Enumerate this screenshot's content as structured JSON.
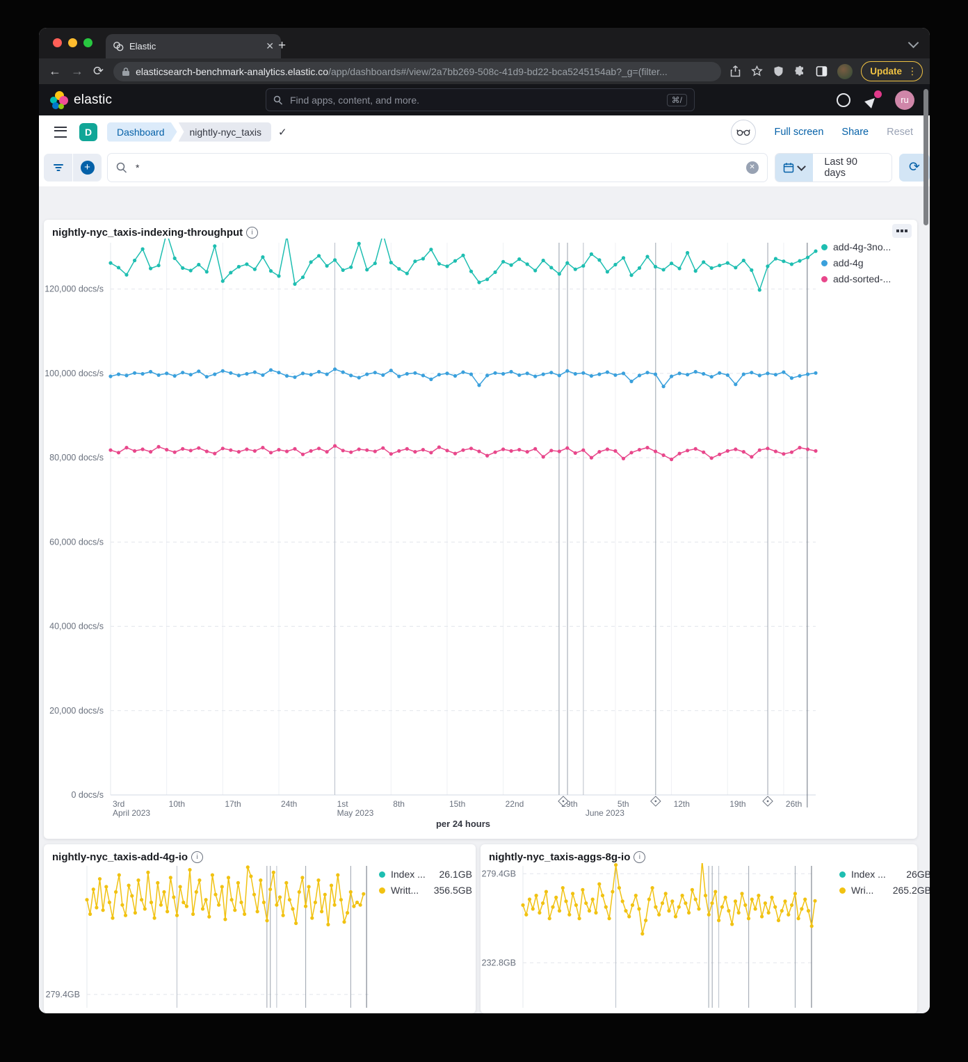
{
  "colors": {
    "teal": "#1ebeb1",
    "blue": "#3aa0dc",
    "pink": "#e8478b",
    "yellow": "#f1c212",
    "link_blue": "#0561a8",
    "badge_teal": "#11a697"
  },
  "browser": {
    "tab_title": "Elastic",
    "url_domain": "elasticsearch-benchmark-analytics.elastic.co",
    "url_path": "/app/dashboards#/view/2a7bb269-508c-41d9-bd22-bca5245154ab?_g=(filter...",
    "update_label": "Update"
  },
  "app_header": {
    "brand": "elastic",
    "search_placeholder": "Find apps, content, and more.",
    "search_shortcut": "⌘/",
    "avatar_initials": "ru"
  },
  "toolbar": {
    "breadcrumb_app": "Dashboard",
    "breadcrumb_page": "nightly-nyc_taxis",
    "full_screen_label": "Full screen",
    "share_label": "Share",
    "reset_label": "Reset"
  },
  "querybar": {
    "query_value": "*",
    "time_range": "Last 90 days"
  },
  "panels": {
    "main_title": "nightly-nyc_taxis-indexing-throughput",
    "left_title": "nightly-nyc_taxis-add-4g-io",
    "right_title": "nightly-nyc_taxis-aggs-8g-io"
  },
  "chart_data": [
    {
      "id": "main",
      "type": "line",
      "title": "nightly-nyc_taxis-indexing-throughput",
      "caption": "per 24 hours",
      "unit": "docs/s",
      "value_unit_thousands": true,
      "ylim": [
        0,
        131
      ],
      "total_days": 88,
      "yticks": [
        {
          "v": 0,
          "label": "0 docs/s"
        },
        {
          "v": 20,
          "label": "20,000 docs/s"
        },
        {
          "v": 40,
          "label": "40,000 docs/s"
        },
        {
          "v": 60,
          "label": "60,000 docs/s"
        },
        {
          "v": 80,
          "label": "80,000 docs/s"
        },
        {
          "v": 100,
          "label": "100,000 docs/s"
        },
        {
          "v": 120,
          "label": "120,000 docs/s"
        }
      ],
      "xticks": [
        {
          "i": 0,
          "l1": "3rd",
          "l2": "April 2023"
        },
        {
          "i": 7,
          "l1": "10th"
        },
        {
          "i": 14,
          "l1": "17th"
        },
        {
          "i": 21,
          "l1": "24th"
        },
        {
          "i": 28,
          "l1": "1st",
          "l2": "May 2023"
        },
        {
          "i": 35,
          "l1": "8th"
        },
        {
          "i": 42,
          "l1": "15th"
        },
        {
          "i": 49,
          "l1": "22nd"
        },
        {
          "i": 56,
          "l1": "29th"
        },
        {
          "i": 59,
          "l1": "",
          "l2": "June 2023"
        },
        {
          "i": 63,
          "l1": "5th"
        },
        {
          "i": 70,
          "l1": "12th"
        },
        {
          "i": 77,
          "l1": "19th"
        },
        {
          "i": 84,
          "l1": "26th"
        }
      ],
      "month_fracs": [
        0.318,
        0.6705
      ],
      "annotation_fracs": [
        0.636,
        0.648,
        0.773,
        0.932
      ],
      "tag_fracs": [
        0.642,
        0.773,
        0.932
      ],
      "end_frac": 0.988,
      "legend": [
        {
          "name": "add-4g-3no...",
          "color": "#1ebeb1"
        },
        {
          "name": "add-4g",
          "color": "#3aa0dc"
        },
        {
          "name": "add-sorted-...",
          "color": "#e8478b"
        }
      ],
      "series": [
        {
          "name": "add-4g-3no...",
          "color": "#1ebeb1",
          "values": [
            126.2,
            125.1,
            123.4,
            126.8,
            129.5,
            124.9,
            125.6,
            133.4,
            127.3,
            125.0,
            124.4,
            125.8,
            124.1,
            130.2,
            121.9,
            123.9,
            125.3,
            125.9,
            124.7,
            127.6,
            124.3,
            123.1,
            132.6,
            121.2,
            122.8,
            126.4,
            127.9,
            125.5,
            126.9,
            124.5,
            125.2,
            130.8,
            124.6,
            126.1,
            133.1,
            126.3,
            124.8,
            123.7,
            126.6,
            127.2,
            129.4,
            126.0,
            125.4,
            126.7,
            128.0,
            124.2,
            121.6,
            122.3,
            124.0,
            126.5,
            125.7,
            127.1,
            125.9,
            124.4,
            126.8,
            125.1,
            123.6,
            126.2,
            124.7,
            125.5,
            128.3,
            126.9,
            124.1,
            125.8,
            127.4,
            123.3,
            125.0,
            127.7,
            125.3,
            124.6,
            126.1,
            124.9,
            128.6,
            124.3,
            126.4,
            125.0,
            125.6,
            126.2,
            125.1,
            126.8,
            124.5,
            119.8,
            125.4,
            127.2,
            126.6,
            125.9,
            126.7,
            127.5,
            129.0
          ]
        },
        {
          "name": "add-4g",
          "color": "#3aa0dc",
          "values": [
            99.3,
            99.8,
            99.5,
            100.1,
            99.9,
            100.4,
            99.6,
            100.0,
            99.4,
            100.2,
            99.7,
            100.5,
            99.2,
            99.8,
            100.6,
            100.1,
            99.5,
            99.9,
            100.3,
            99.6,
            100.8,
            100.2,
            99.4,
            99.1,
            100.0,
            99.7,
            100.4,
            99.8,
            101.0,
            100.3,
            99.5,
            99.0,
            99.8,
            100.2,
            99.6,
            100.7,
            99.3,
            99.9,
            100.1,
            99.5,
            98.6,
            99.7,
            100.0,
            99.4,
            100.3,
            99.8,
            97.2,
            99.5,
            100.1,
            99.9,
            100.4,
            99.6,
            100.0,
            99.3,
            99.8,
            100.2,
            99.5,
            100.6,
            99.9,
            100.1,
            99.4,
            99.8,
            100.3,
            99.6,
            100.0,
            98.1,
            99.5,
            100.2,
            99.8,
            96.9,
            99.3,
            100.0,
            99.7,
            100.4,
            99.9,
            99.2,
            100.1,
            99.6,
            97.4,
            99.8,
            100.2,
            99.5,
            100.0,
            99.7,
            100.3,
            98.9,
            99.4,
            99.8,
            100.1
          ]
        },
        {
          "name": "add-sorted-...",
          "color": "#e8478b",
          "values": [
            81.8,
            81.2,
            82.4,
            81.6,
            82.0,
            81.4,
            82.6,
            81.9,
            81.3,
            82.1,
            81.7,
            82.3,
            81.5,
            81.0,
            82.2,
            81.8,
            81.4,
            82.0,
            81.6,
            82.4,
            81.2,
            81.9,
            81.5,
            82.1,
            80.8,
            81.6,
            82.2,
            81.4,
            82.8,
            81.7,
            81.3,
            82.0,
            81.8,
            81.5,
            82.3,
            80.9,
            81.6,
            82.1,
            81.4,
            81.9,
            81.2,
            82.5,
            81.7,
            81.0,
            81.8,
            82.2,
            81.5,
            80.5,
            81.3,
            82.0,
            81.6,
            81.9,
            81.4,
            82.1,
            80.2,
            81.7,
            81.5,
            82.3,
            81.1,
            81.8,
            80.0,
            81.4,
            82.0,
            81.6,
            79.8,
            81.2,
            81.9,
            82.4,
            81.5,
            80.6,
            79.6,
            81.0,
            81.7,
            82.1,
            81.3,
            79.9,
            80.8,
            81.6,
            82.0,
            81.4,
            80.2,
            81.8,
            82.2,
            81.5,
            80.9,
            81.3,
            82.4,
            82.0,
            81.6
          ]
        }
      ]
    },
    {
      "id": "io_left",
      "type": "line",
      "title": "nightly-nyc_taxis-add-4g-io",
      "unit": "GB",
      "ylim": [
        245.7,
        378
      ],
      "total_days": 88,
      "yticks": [
        {
          "v": 279.4,
          "label": "279.4GB"
        }
      ],
      "xticks": [],
      "month_fracs": [
        0.318,
        0.6705
      ],
      "annotation_fracs": [
        0.636,
        0.648,
        0.773,
        0.932
      ],
      "end_frac": 0.988,
      "legend": [
        {
          "name": "Index ...",
          "value": "26.1GB",
          "color": "#1ebeb1"
        },
        {
          "name": "Writt...",
          "value": "356.5GB",
          "color": "#f1c212"
        }
      ],
      "series": [
        {
          "name": "Written",
          "color": "#f1c212",
          "values": [
            352,
            341,
            360,
            346,
            368,
            344,
            362,
            350,
            338,
            358,
            371,
            348,
            340,
            363,
            355,
            342,
            367,
            352,
            345,
            373,
            350,
            338,
            365,
            348,
            358,
            343,
            369,
            354,
            340,
            362,
            350,
            347,
            375,
            341,
            358,
            367,
            345,
            352,
            339,
            371,
            356,
            348,
            362,
            337,
            369,
            352,
            344,
            365,
            350,
            341,
            377,
            370,
            356,
            343,
            367,
            350,
            336,
            360,
            373,
            348,
            354,
            340,
            365,
            352,
            345,
            334,
            358,
            369,
            347,
            362,
            338,
            350,
            367,
            343,
            356,
            333,
            363,
            348,
            371,
            352,
            335,
            342,
            358,
            347,
            350,
            348,
            356.5
          ]
        }
      ]
    },
    {
      "id": "io_right",
      "type": "line",
      "title": "nightly-nyc_taxis-aggs-8g-io",
      "unit": "GB",
      "ylim": [
        193.3,
        283.5
      ],
      "total_days": 88,
      "yticks": [
        {
          "v": 279.4,
          "label": "279.4GB"
        },
        {
          "v": 232.8,
          "label": "232.8GB"
        }
      ],
      "xticks": [],
      "month_fracs": [
        0.318,
        0.6705
      ],
      "annotation_fracs": [
        0.636,
        0.648,
        0.773,
        0.932
      ],
      "end_frac": 0.988,
      "legend": [
        {
          "name": "Index ...",
          "value": "26GB",
          "color": "#1ebeb1"
        },
        {
          "name": "Wri...",
          "value": "265.2GB",
          "color": "#f1c212"
        }
      ],
      "series": [
        {
          "name": "Written",
          "color": "#f1c212",
          "values": [
            263,
            258,
            266,
            261,
            268,
            259,
            264,
            270,
            256,
            262,
            267,
            260,
            272,
            265,
            258,
            269,
            263,
            256,
            271,
            264,
            260,
            266,
            259,
            274,
            268,
            262,
            256,
            270,
            284,
            272,
            265,
            260,
            257,
            263,
            268,
            261,
            248,
            255,
            266,
            272,
            262,
            258,
            264,
            269,
            260,
            265,
            257,
            262,
            268,
            264,
            259,
            271,
            266,
            261,
            286,
            268,
            258,
            264,
            270,
            255,
            262,
            267,
            260,
            253,
            265,
            259,
            269,
            263,
            256,
            266,
            261,
            268,
            257,
            264,
            259,
            267,
            262,
            255,
            260,
            265,
            258,
            263,
            269,
            256,
            261,
            266,
            260,
            252,
            265.2
          ]
        }
      ]
    }
  ]
}
